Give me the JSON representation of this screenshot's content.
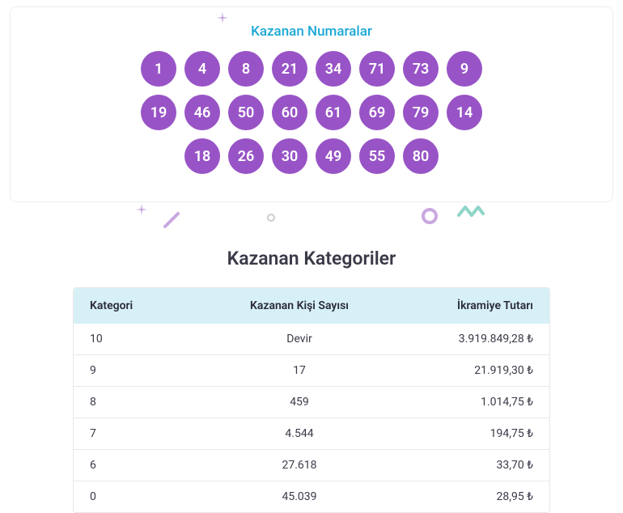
{
  "numbers": {
    "title": "Kazanan Numaralar",
    "title_color": "#1ba8d6",
    "ball_color": "#9854c6",
    "ball_text_color": "#ffffff",
    "rows": [
      [
        "1",
        "4",
        "8",
        "21",
        "34",
        "71",
        "73",
        "9"
      ],
      [
        "19",
        "46",
        "50",
        "60",
        "61",
        "69",
        "79",
        "14"
      ],
      [
        "18",
        "26",
        "30",
        "49",
        "55",
        "80"
      ]
    ]
  },
  "categories": {
    "title": "Kazanan Kategoriler",
    "header_bg": "#d6f0f6",
    "columns": [
      "Kategori",
      "Kazanan Kişi Sayısı",
      "İkramiye Tutarı"
    ],
    "rows": [
      [
        "10",
        "Devir",
        "3.919.849,28 ₺"
      ],
      [
        "9",
        "17",
        "21.919,30 ₺"
      ],
      [
        "8",
        "459",
        "1.014,75 ₺"
      ],
      [
        "7",
        "4.544",
        "194,75 ₺"
      ],
      [
        "6",
        "27.618",
        "33,70 ₺"
      ],
      [
        "0",
        "45.039",
        "28,95 ₺"
      ]
    ]
  },
  "decorations": {
    "purple": "#c9a8e0",
    "teal": "#8fd4c8",
    "gray": "#cccccc"
  }
}
